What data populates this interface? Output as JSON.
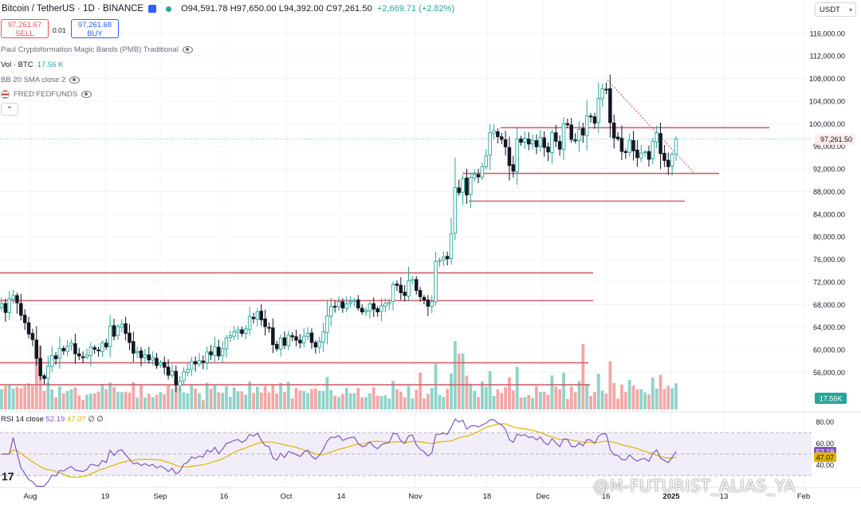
{
  "header": {
    "symbol": "Bitcoin / TetherUS · 1D · BINANCE",
    "ohlc": "O94,591.78 H97,650.00 L94,392.00 C97,261.50",
    "change": "+2,669.71 (+2.82%)"
  },
  "trade": {
    "sell_price": "97,261.67",
    "sell_label": "SELL",
    "spread": "0.01",
    "buy_price": "97,261.68",
    "buy_label": "BUY"
  },
  "indicators": [
    {
      "label": "Paul Cryptoformation Magic Bands (PMB) Traditional"
    },
    {
      "label": "Vol · BTC",
      "value": "17.56 K"
    },
    {
      "label": "BB 20 SMA close 2"
    },
    {
      "label": "FRED:FEDFUNDS"
    }
  ],
  "collapse_icon": "chevron-up-icon",
  "currency": "USDT",
  "rsi": {
    "label": "RSI 14 close",
    "value": "52.19",
    "ma": "47.07",
    "extra": "∅ ∅"
  },
  "watermark": "@M-FUTURIST_ALIAS_YA",
  "logo": "17",
  "colors": {
    "up": "#26a69a",
    "down": "#ef5350",
    "hline": "#d06070",
    "rsi": "#7e57c2",
    "rsi_ma": "#e0b400",
    "rsi_band": "#ede7f6"
  },
  "chart_data": {
    "type": "candlestick",
    "title": "Bitcoin / TetherUS · 1D · BINANCE",
    "price_axis": {
      "ticks": [
        56000,
        60000,
        64000,
        68000,
        72000,
        76000,
        80000,
        84000,
        88000,
        92000,
        96000,
        100000,
        104000,
        108000,
        112000,
        116000
      ],
      "tick_labels": [
        "56,000.00",
        "60,000.00",
        "64,000.00",
        "68,000.00",
        "72,000.00",
        "76,000.00",
        "80,000.00",
        "84,000.00",
        "88,000.00",
        "92,000.00",
        "96,000.00",
        "100,000.00",
        "104,000.00",
        "108,000.00",
        "112,000.00",
        "116,000.00"
      ],
      "last_price": 97261.5,
      "last_price_label": "97,261.50"
    },
    "time_axis": {
      "labels": [
        "Aug",
        "19",
        "Sep",
        "16",
        "Oct",
        "14",
        "Nov",
        "18",
        "Dec",
        "16",
        "2025",
        "13",
        "Feb"
      ]
    },
    "close_path": [
      68200,
      66600,
      69000,
      69600,
      68300,
      66100,
      64800,
      62800,
      61800,
      58500,
      55400,
      54900,
      57100,
      59000,
      58400,
      60200,
      59800,
      60600,
      61200,
      59300,
      58900,
      58600,
      59100,
      60500,
      60100,
      59800,
      61200,
      60500,
      64200,
      62400,
      64100,
      64500,
      62900,
      61300,
      59400,
      59700,
      58600,
      59100,
      58200,
      58600,
      57200,
      57700,
      56900,
      55500,
      56200,
      53800,
      54400,
      56100,
      56500,
      57900,
      57500,
      58100,
      57800,
      59600,
      59100,
      60500,
      58900,
      60200,
      62100,
      62500,
      63200,
      63500,
      62900,
      63700,
      65900,
      65500,
      66700,
      65300,
      64100,
      63900,
      60900,
      60200,
      62100,
      60800,
      62600,
      62300,
      61700,
      61200,
      62400,
      62900,
      61300,
      60500,
      61500,
      63200,
      66000,
      67700,
      67600,
      68500,
      67400,
      68100,
      68500,
      68700,
      67400,
      66700,
      67000,
      68100,
      67200,
      66700,
      67800,
      68200,
      68400,
      71500,
      71400,
      70100,
      69600,
      72200,
      72500,
      70500,
      69400,
      68800,
      67700,
      68500,
      75600,
      75800,
      76400,
      76100,
      80500,
      88700,
      87800,
      90300,
      87400,
      90500,
      91000,
      90600,
      92400,
      94300,
      98400,
      98700,
      97700,
      97200,
      95900,
      92600,
      91600,
      97300,
      96700,
      97400,
      96400,
      97000,
      95900,
      97600,
      95800,
      95000,
      98400,
      96900,
      95500,
      100000,
      99800,
      97200,
      97000,
      99000,
      98000,
      101400,
      101300,
      100100,
      104500,
      106200,
      106100,
      100200,
      97500,
      97300,
      95100,
      94900,
      97100,
      95200,
      94000,
      94800,
      95000,
      93700,
      96900,
      98400,
      94700,
      93500,
      92400,
      94600,
      97300
    ],
    "volume_label": "17.56K",
    "horizontal_levels": [
      99300,
      91200,
      86300,
      73600,
      68700,
      57700,
      53800
    ],
    "trendline": {
      "from_price": 107700,
      "to_price": 91100
    },
    "rsi_axis": {
      "ticks": [
        40,
        60,
        80
      ]
    },
    "rsi_last": 52.19,
    "rsi_ma_last": 47.07
  }
}
